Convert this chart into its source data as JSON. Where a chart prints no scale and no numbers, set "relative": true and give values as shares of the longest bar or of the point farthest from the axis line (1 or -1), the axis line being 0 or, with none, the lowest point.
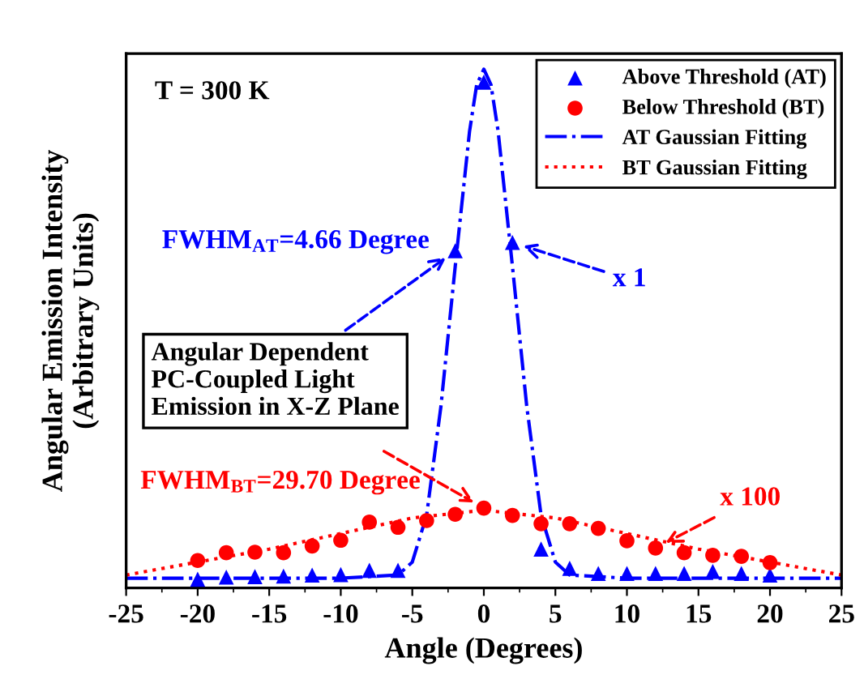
{
  "chart_data": {
    "type": "scatter",
    "relative": true,
    "xlabel": "Angle (Degrees)",
    "ylabel": "Angular Emission Intensity\n(Arbitrary Units)",
    "xlim": [
      -25,
      25
    ],
    "xticks": [
      -25,
      -20,
      -15,
      -10,
      -5,
      0,
      5,
      10,
      15,
      20,
      25
    ],
    "tick_labels": "x",
    "grid": false,
    "legend": "top right",
    "series": [
      {
        "name": "Above Threshold (AT)",
        "marker": "triangle",
        "color": "#0000ff",
        "x": [
          -20,
          -18,
          -16,
          -14,
          -12,
          -10,
          -8,
          -6,
          -2,
          0,
          2,
          4,
          6,
          8,
          10,
          12,
          14,
          16,
          18,
          20
        ],
        "values": [
          0.017,
          0.021,
          0.022,
          0.023,
          0.025,
          0.026,
          0.034,
          0.034,
          0.65,
          0.975,
          0.666,
          0.075,
          0.038,
          0.028,
          0.028,
          0.028,
          0.028,
          0.032,
          0.028,
          0.025
        ]
      },
      {
        "name": "Below Threshold (BT)",
        "marker": "circle",
        "color": "#ff0000",
        "x": [
          -20,
          -18,
          -16,
          -14,
          -12,
          -10,
          -8,
          -6,
          -4,
          -2,
          0,
          2,
          4,
          6,
          8,
          10,
          12,
          14,
          16,
          18,
          20
        ],
        "values": [
          0.053,
          0.068,
          0.069,
          0.068,
          0.081,
          0.092,
          0.127,
          0.117,
          0.13,
          0.142,
          0.154,
          0.14,
          0.124,
          0.124,
          0.115,
          0.091,
          0.077,
          0.068,
          0.063,
          0.061,
          0.049
        ]
      },
      {
        "name": "AT Gaussian Fitting",
        "type": "line",
        "line_style": "dashdot",
        "color": "#0000ff",
        "x": [
          -25,
          -10,
          -6,
          -5,
          -4,
          -3,
          -2,
          -1,
          -0.5,
          0,
          0.5,
          1,
          2,
          3,
          4,
          5,
          6,
          10,
          25
        ],
        "values": [
          0.019,
          0.019,
          0.025,
          0.05,
          0.14,
          0.35,
          0.62,
          0.88,
          0.97,
          1.0,
          0.97,
          0.88,
          0.62,
          0.35,
          0.14,
          0.05,
          0.025,
          0.019,
          0.019
        ]
      },
      {
        "name": "BT Gaussian Fitting",
        "type": "line",
        "line_style": "dotted",
        "color": "#ff0000",
        "x": [
          -25,
          -20,
          -15,
          -10,
          -5,
          0,
          5,
          10,
          15,
          20,
          25
        ],
        "values": [
          0.025,
          0.05,
          0.075,
          0.105,
          0.135,
          0.15,
          0.135,
          0.105,
          0.075,
          0.05,
          0.025
        ]
      }
    ],
    "annotations": [
      "T = 300 K",
      "FWHM$_{AT}$=4.66 Degree",
      {
        "text": "x 1",
        "x": 2,
        "y": 0.666
      },
      {
        "text": "Angular Dependent\nPC-Coupled Light\nEmission in X-Z Plane",
        "x": -2,
        "y": 0.65
      },
      "FWHM$_{BT}$=29.70 Degree",
      {
        "text": "x 100",
        "x": 12,
        "y": 0.077
      }
    ]
  }
}
